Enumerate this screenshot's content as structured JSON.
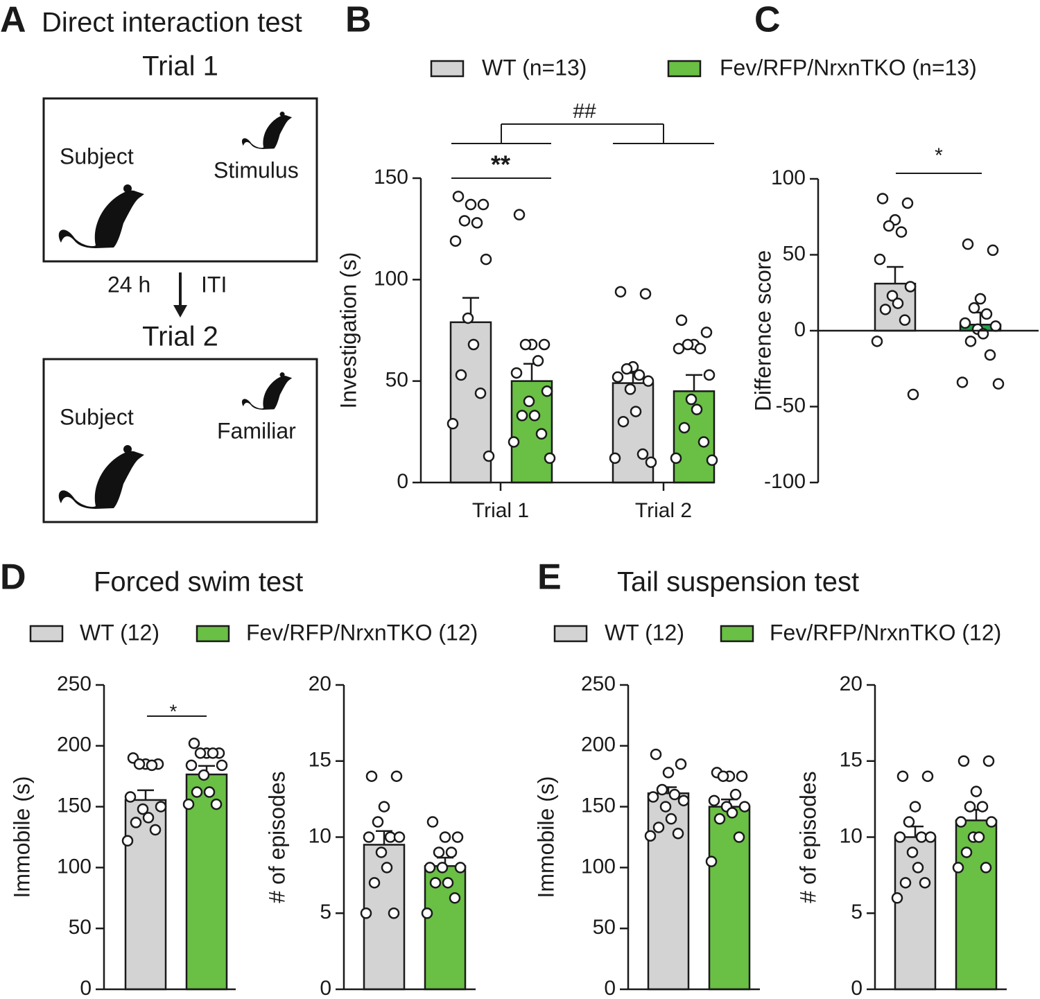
{
  "panel_labels": [
    "A",
    "B",
    "C",
    "D",
    "E"
  ],
  "diagram": {
    "title": "Direct interaction test",
    "trial1": "Trial 1",
    "subject1": "Subject",
    "stimulus": "Stimulus",
    "interval_left": "24 h",
    "interval_right": "ITI",
    "trial2": "Trial 2",
    "subject2": "Subject",
    "familiar": "Familiar"
  },
  "chart_data": [
    {
      "type": "bar",
      "categories": [
        "Trial 1",
        "Trial 2"
      ],
      "ylabel": "Investigation (s)",
      "ylim": [
        0,
        150
      ],
      "yticks": [
        0,
        50,
        100,
        150
      ],
      "series": [
        {
          "name": "WT (n=13)",
          "color": "#d3d3d3",
          "values": [
            79,
            49
          ],
          "errors": [
            12,
            5
          ],
          "points": [
            [
              141,
              137,
              137,
              129,
              128,
              119,
              110,
              81,
              68,
              53,
              44,
              29,
              13
            ],
            [
              94,
              93,
              57,
              56,
              53,
              52,
              50,
              46,
              35,
              30,
              14,
              12,
              10
            ]
          ]
        },
        {
          "name": "Fev/RFP/NrxnTKO (n=13)",
          "color": "#6abf45",
          "values": [
            50,
            45
          ],
          "errors": [
            8.5,
            8
          ],
          "points": [
            [
              132,
              68,
              68,
              68,
              60,
              54,
              45,
              40,
              33,
              33,
              24,
              20,
              12
            ],
            [
              80,
              74,
              68,
              68,
              66,
              66,
              53,
              41,
              36,
              27,
              20,
              12,
              11
            ]
          ]
        }
      ],
      "annotations": [
        "**",
        "##"
      ]
    },
    {
      "type": "bar",
      "ylabel": "Difference score",
      "ylim": [
        -100,
        100
      ],
      "yticks": [
        -100,
        -50,
        0,
        50,
        100
      ],
      "series": [
        {
          "color": "#d3d3d3",
          "values": [
            31
          ],
          "errors": [
            11
          ],
          "points": [
            [
              87,
              84,
              73,
              69,
              65,
              47,
              29,
              23,
              18,
              14,
              7,
              -7,
              -42
            ]
          ]
        },
        {
          "color": "#21a04b",
          "values": [
            4
          ],
          "errors": [
            8
          ],
          "points": [
            [
              57,
              53,
              21,
              15,
              11,
              5,
              3,
              1,
              -2,
              -7,
              -16,
              -34,
              -35
            ]
          ]
        }
      ],
      "annotations": [
        "*"
      ]
    },
    {
      "type": "bar",
      "title": "Forced swim test",
      "ylabel": "Immobile (s)",
      "ylim": [
        0,
        250
      ],
      "yticks": [
        0,
        50,
        100,
        150,
        200,
        250
      ],
      "series": [
        {
          "name": "WT (12)",
          "color": "#d3d3d3",
          "values": [
            155.5
          ],
          "errors": [
            8
          ],
          "points": [
            [
              190,
              185,
              185,
              185,
              184,
              158,
              150,
              148,
              141,
              137,
              131,
              122
            ]
          ]
        },
        {
          "name": "Fev/RFP/NrxnTKO (12)",
          "color": "#6abf45",
          "values": [
            176.5
          ],
          "errors": [
            7
          ],
          "points": [
            [
              202,
              194,
              194,
              194,
              194,
              184,
              184,
              176,
              162,
              162,
              152,
              152
            ]
          ]
        }
      ],
      "annotations": [
        "*"
      ]
    },
    {
      "type": "bar",
      "ylabel": "# of episodes",
      "ylim": [
        0,
        20
      ],
      "yticks": [
        0,
        5,
        10,
        15,
        20
      ],
      "series": [
        {
          "color": "#d3d3d3",
          "values": [
            9.5
          ],
          "errors": [
            0.9
          ],
          "points": [
            [
              14,
              14,
              12,
              11,
              10,
              10,
              10,
              9,
              8,
              7,
              5,
              5
            ]
          ]
        },
        {
          "color": "#6abf45",
          "values": [
            8.1
          ],
          "errors": [
            0.55
          ],
          "points": [
            [
              11,
              10,
              10,
              9,
              9,
              8,
              8,
              8,
              7,
              7,
              6,
              5
            ]
          ]
        }
      ]
    },
    {
      "type": "bar",
      "title": "Tail suspension test",
      "ylabel": "Immobile (s)",
      "ylim": [
        0,
        250
      ],
      "yticks": [
        0,
        50,
        100,
        150,
        200,
        250
      ],
      "series": [
        {
          "name": "WT (12)",
          "color": "#d3d3d3",
          "values": [
            161
          ],
          "errors": [
            5
          ],
          "points": [
            [
              193,
              185,
              178,
              164,
              160,
              158,
              155,
              150,
              140,
              133,
              128,
              126
            ]
          ]
        },
        {
          "name": "Fev/RFP/NrxnTKO (12)",
          "color": "#6abf45",
          "values": [
            150
          ],
          "errors": [
            6
          ],
          "points": [
            [
              178,
              175,
              175,
              175,
              160,
              155,
              150,
              150,
              145,
              140,
              125,
              105
            ]
          ]
        }
      ]
    },
    {
      "type": "bar",
      "ylabel": "# of episodes",
      "ylim": [
        0,
        20
      ],
      "yticks": [
        0,
        5,
        10,
        15,
        20
      ],
      "series": [
        {
          "color": "#d3d3d3",
          "values": [
            10
          ],
          "errors": [
            0.7
          ],
          "points": [
            [
              14,
              14,
              12,
              11,
              10,
              10,
              10,
              9,
              8,
              7,
              7,
              6
            ]
          ]
        },
        {
          "color": "#6abf45",
          "values": [
            11.1
          ],
          "errors": [
            0.7
          ],
          "points": [
            [
              15,
              15,
              13,
              12,
              12,
              11,
              11,
              10,
              10,
              9,
              8,
              8
            ]
          ]
        }
      ]
    }
  ]
}
